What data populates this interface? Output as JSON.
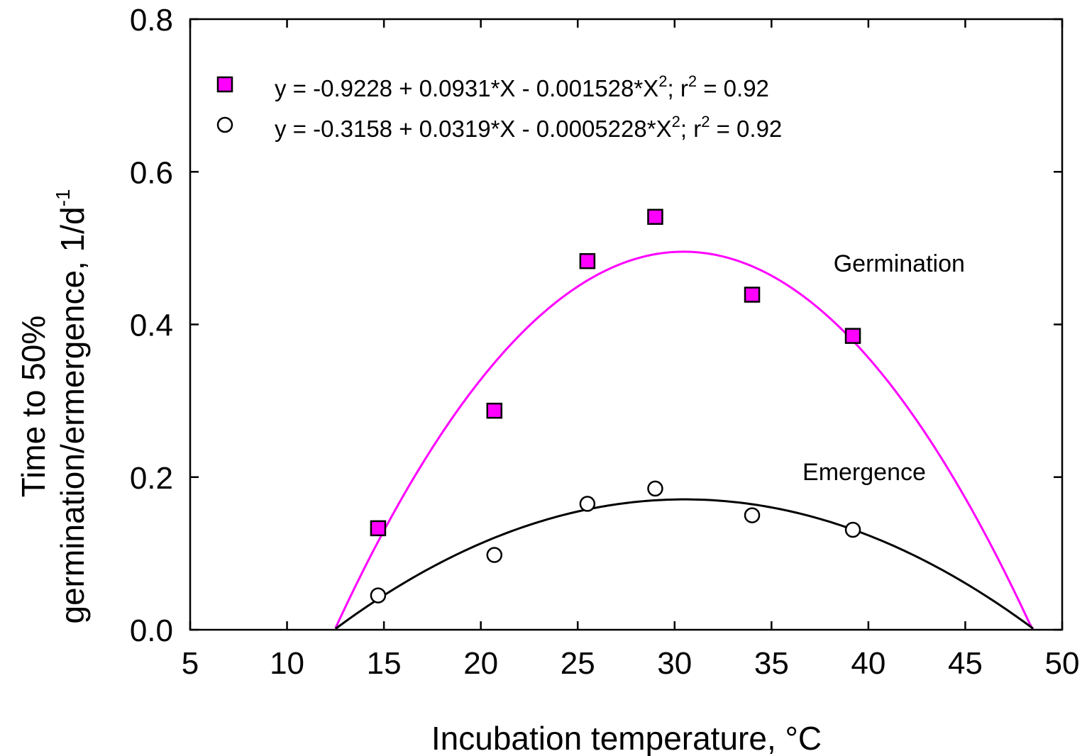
{
  "chart_data": {
    "type": "scatter",
    "xlabel": "Incubation temperature, °C",
    "ylabel_line1": "Time to 50%",
    "ylabel_line2_main": "germination/ermergence, 1/d",
    "ylabel_line2_sup": "-1",
    "xlim": [
      5,
      50
    ],
    "ylim": [
      0,
      0.8
    ],
    "x_ticks": [
      5,
      10,
      15,
      20,
      25,
      30,
      35,
      40,
      45,
      50
    ],
    "x_tick_labels": [
      "5",
      "10",
      "15",
      "20",
      "25",
      "30",
      "35",
      "40",
      "45",
      "50"
    ],
    "y_ticks": [
      0,
      0.2,
      0.4,
      0.6,
      0.8
    ],
    "y_tick_labels": [
      "0.0",
      "0.2",
      "0.4",
      "0.6",
      "0.8"
    ],
    "grid": false,
    "legend_position": "top-left",
    "series": [
      {
        "name": "Germination",
        "marker": "square",
        "color": "#ff00ff",
        "x": [
          14.7,
          20.7,
          25.5,
          29.0,
          34.0,
          39.2
        ],
        "y": [
          0.133,
          0.287,
          0.483,
          0.541,
          0.439,
          0.385
        ],
        "fit": {
          "coefficients": [
            -0.9228,
            0.0931,
            -0.001528
          ],
          "x_range": [
            12.5,
            48.5
          ]
        },
        "legend_main": "y = -0.9228 + 0.0931*X - 0.001528*X",
        "legend_mid": "; r",
        "legend_end": " = 0.92",
        "legend_sup": "2"
      },
      {
        "name": "Emergence",
        "marker": "circle",
        "color": "#000000",
        "x": [
          14.7,
          20.7,
          25.5,
          29.0,
          34.0,
          39.2
        ],
        "y": [
          0.045,
          0.098,
          0.165,
          0.185,
          0.15,
          0.131
        ],
        "fit": {
          "coefficients": [
            -0.3158,
            0.0319,
            -0.0005228
          ],
          "x_range": [
            12.5,
            48.5
          ]
        },
        "legend_main": "y = -0.3158 + 0.0319*X - 0.0005228*X",
        "legend_mid": "; r",
        "legend_end": " = 0.92",
        "legend_sup": "2"
      }
    ],
    "annotations": [
      {
        "text": "Germination",
        "x": 38.2,
        "y": 0.469
      },
      {
        "text": "Emergence",
        "x": 36.6,
        "y": 0.196
      }
    ]
  }
}
